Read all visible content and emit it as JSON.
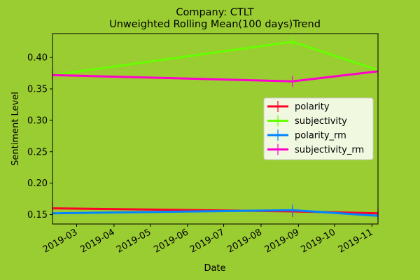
{
  "chart_data": {
    "type": "line",
    "title": "Company: CTLT",
    "subtitle": "Unweighted Rolling Mean(100 days)Trend",
    "xlabel": "Date",
    "ylabel": "Sentiment Level",
    "xlim": [
      "2019-02-09",
      "2019-11-06"
    ],
    "ylim": [
      0.135,
      0.438
    ],
    "x_ticks": [
      "2019-03",
      "2019-04",
      "2019-05",
      "2019-06",
      "2019-07",
      "2019-08",
      "2019-09",
      "2019-10",
      "2019-11"
    ],
    "y_ticks": [
      0.15,
      0.2,
      0.25,
      0.3,
      0.35,
      0.4
    ],
    "y_tick_labels": [
      "0.15",
      "0.20",
      "0.25",
      "0.30",
      "0.35",
      "0.40"
    ],
    "legend_position": "center-right",
    "grid": false,
    "series": [
      {
        "name": "polarity",
        "color": "#ff0027",
        "points": [
          [
            "2019-02-09",
            0.16
          ],
          [
            "2019-08-27",
            0.155
          ],
          [
            "2019-11-06",
            0.152
          ]
        ]
      },
      {
        "name": "subjectivity",
        "color": "#66ff00",
        "points": [
          [
            "2019-02-09",
            0.372
          ],
          [
            "2019-08-27",
            0.425
          ],
          [
            "2019-11-06",
            0.38
          ]
        ]
      },
      {
        "name": "polarity_rm",
        "color": "#0084ff",
        "points": [
          [
            "2019-02-09",
            0.152
          ],
          [
            "2019-08-27",
            0.157
          ],
          [
            "2019-11-06",
            0.148
          ]
        ]
      },
      {
        "name": "subjectivity_rm",
        "color": "#ff00cc",
        "points": [
          [
            "2019-02-09",
            0.372
          ],
          [
            "2019-08-27",
            0.362
          ],
          [
            "2019-11-06",
            0.378
          ]
        ]
      }
    ]
  }
}
